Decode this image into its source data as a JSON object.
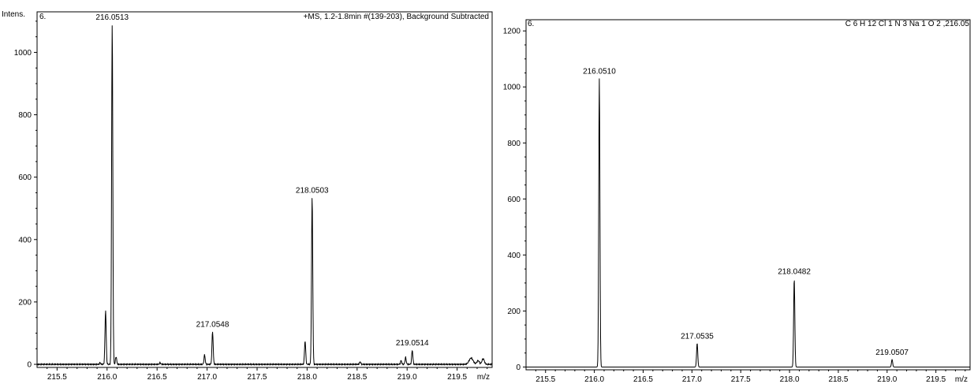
{
  "chart_data": [
    {
      "type": "line",
      "panel_label": "6.",
      "header_left": "Intens.",
      "header_right": "+MS, 1.2-1.8min #(139-203), Background Subtracted",
      "xlabel": "m/z",
      "ylabel": "Intens.",
      "xlim": [
        215.3,
        219.85
      ],
      "ylim": [
        -10,
        1130
      ],
      "xticks": [
        215.5,
        216.0,
        216.5,
        217.0,
        217.5,
        218.0,
        218.5,
        219.0,
        219.5
      ],
      "xtick_labels": [
        "215.5",
        "216.0",
        "216.5",
        "217.0",
        "217.5",
        "218.0",
        "218.5",
        "219.0",
        "219.5"
      ],
      "yticks": [
        0,
        200,
        400,
        600,
        800,
        1000
      ],
      "ytick_labels": [
        "0",
        "200",
        "400",
        "600",
        "800",
        "1000"
      ],
      "noise_level": 3,
      "peaks": [
        {
          "x": 215.93,
          "y": 5,
          "w": 0.006
        },
        {
          "x": 215.985,
          "y": 172,
          "w": 0.006
        },
        {
          "x": 216.0513,
          "y": 1090,
          "w": 0.006
        },
        {
          "x": 216.09,
          "y": 25,
          "w": 0.006
        },
        {
          "x": 216.53,
          "y": 5,
          "w": 0.006
        },
        {
          "x": 216.975,
          "y": 30,
          "w": 0.006
        },
        {
          "x": 217.0548,
          "y": 105,
          "w": 0.006
        },
        {
          "x": 217.98,
          "y": 75,
          "w": 0.006
        },
        {
          "x": 218.0503,
          "y": 535,
          "w": 0.006
        },
        {
          "x": 218.53,
          "y": 8,
          "w": 0.006
        },
        {
          "x": 218.94,
          "y": 12,
          "w": 0.006
        },
        {
          "x": 218.985,
          "y": 22,
          "w": 0.006
        },
        {
          "x": 219.0514,
          "y": 45,
          "w": 0.006
        },
        {
          "x": 219.64,
          "y": 20,
          "w": 0.02
        },
        {
          "x": 219.71,
          "y": 12,
          "w": 0.012
        },
        {
          "x": 219.76,
          "y": 18,
          "w": 0.012
        }
      ],
      "annotations": [
        {
          "x": 216.0513,
          "y": 1090,
          "text": "216.0513"
        },
        {
          "x": 217.0548,
          "y": 105,
          "text": "217.0548"
        },
        {
          "x": 218.0503,
          "y": 535,
          "text": "218.0503"
        },
        {
          "x": 219.0514,
          "y": 45,
          "text": "219.0514"
        }
      ]
    },
    {
      "type": "line",
      "panel_label": "6.",
      "header_left": "",
      "header_right": "C 6 H 12 Cl 1 N 3 Na 1 O 2 ,216.05",
      "xlabel": "m/z",
      "ylabel": "",
      "xlim": [
        215.3,
        219.85
      ],
      "ylim": [
        -10,
        1240
      ],
      "xticks": [
        215.5,
        216.0,
        216.5,
        217.0,
        217.5,
        218.0,
        218.5,
        219.0,
        219.5
      ],
      "xtick_labels": [
        "215.5",
        "216.0",
        "216.5",
        "217.0",
        "217.5",
        "218.0",
        "218.5",
        "219.0",
        "219.5"
      ],
      "yticks": [
        0,
        200,
        400,
        600,
        800,
        1000,
        1200
      ],
      "ytick_labels": [
        "0",
        "200",
        "400",
        "600",
        "800",
        "1000",
        "1200"
      ],
      "noise_level": 0,
      "peaks": [
        {
          "x": 216.051,
          "y": 1030,
          "w": 0.006
        },
        {
          "x": 217.0535,
          "y": 85,
          "w": 0.006
        },
        {
          "x": 218.0482,
          "y": 315,
          "w": 0.006
        },
        {
          "x": 219.0507,
          "y": 27,
          "w": 0.006
        }
      ],
      "annotations": [
        {
          "x": 216.051,
          "y": 1030,
          "text": "216.0510"
        },
        {
          "x": 217.0535,
          "y": 85,
          "text": "217.0535"
        },
        {
          "x": 218.0482,
          "y": 315,
          "text": "218.0482"
        },
        {
          "x": 219.0507,
          "y": 27,
          "text": "219.0507"
        }
      ]
    }
  ]
}
